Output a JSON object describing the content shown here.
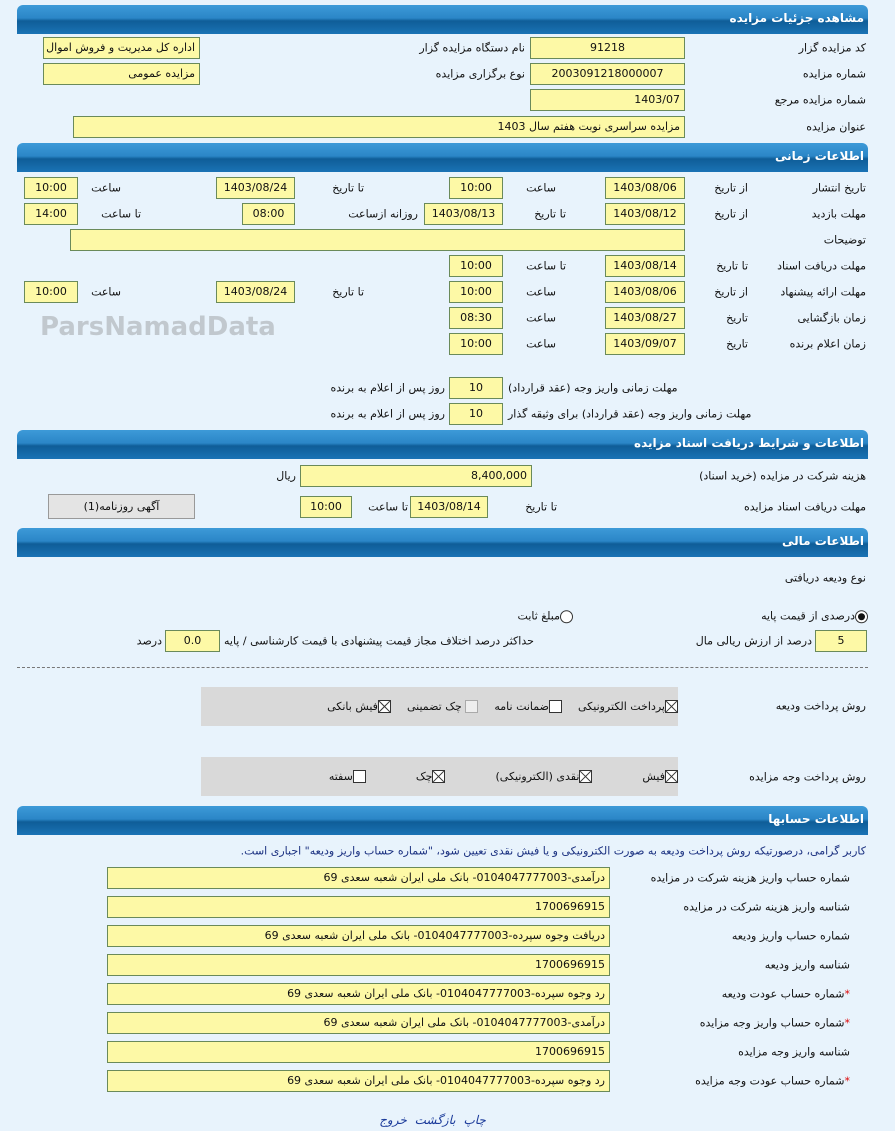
{
  "header": {
    "title": "مشاهده جزئیات مزایده"
  },
  "details": {
    "auctioneer_code_label": "کد مزایده گزار",
    "auctioneer_code": "91218",
    "auctioneer_org_label": "نام دستگاه مزایده گزار",
    "auctioneer_org": "اداره کل مدیریت و فروش اموال",
    "auction_number_label": "شماره مزایده",
    "auction_number": "2003091218000007",
    "auction_type_label": "نوع برگزاری مزایده",
    "auction_type": "مزایده عمومی",
    "ref_number_label": "شماره مزایده مرجع",
    "ref_number": "1403/07",
    "title_label": "عنوان مزایده",
    "title": "مزایده سراسری نوبت هفتم سال 1403"
  },
  "time": {
    "title": "اطلاعات زمانی",
    "publish": {
      "label": "تاریخ انتشار",
      "from_label": "از تاریخ",
      "from": "1403/08/06",
      "time_label": "ساعت",
      "time": "10:00",
      "to_label": "تا تاریخ",
      "to": "1403/08/24",
      "time2_label": "ساعت",
      "time2": "10:00"
    },
    "visit": {
      "label": "مهلت بازدید",
      "from_label": "از تاریخ",
      "from": "1403/08/12",
      "to_label": "تا تاریخ",
      "to": "1403/08/13",
      "daily_label": "روزانه ازساعت",
      "daily": "08:00",
      "until_label": "تا ساعت",
      "until": "14:00"
    },
    "desc_label": "توضیحات",
    "desc": "",
    "docs": {
      "label": "مهلت دریافت اسناد",
      "to_label": "تا تاریخ",
      "to": "1403/08/14",
      "time_label": "تا ساعت",
      "time": "10:00"
    },
    "offer": {
      "label": "مهلت ارائه پیشنهاد",
      "from_label": "از تاریخ",
      "from": "1403/08/06",
      "time_label": "ساعت",
      "time": "10:00",
      "to_label": "تا تاریخ",
      "to": "1403/08/24",
      "time2_label": "ساعت",
      "time2": "10:00"
    },
    "opening": {
      "label": "زمان بازگشایی",
      "date_label": "تاریخ",
      "date": "1403/08/27",
      "time_label": "ساعت",
      "time": "08:30"
    },
    "winner": {
      "label": "زمان اعلام برنده",
      "date_label": "تاریخ",
      "date": "1403/09/07",
      "time_label": "ساعت",
      "time": "10:00"
    },
    "pay1": {
      "label": "مهلت زمانی واریز وجه (عقد قرارداد)",
      "value": "10",
      "suffix": "روز پس از اعلام به برنده"
    },
    "pay2": {
      "label": "مهلت زمانی واریز وجه (عقد قرارداد) برای وثیقه گذار",
      "value": "10",
      "suffix": "روز پس از اعلام به برنده"
    }
  },
  "docs": {
    "title": "اطلاعات و شرایط دریافت اسناد مزایده",
    "fee_label": "هزینه شرکت در مزایده (خرید اسناد)",
    "fee": "8,400,000",
    "currency": "ریال",
    "deadline_label": "مهلت دریافت اسناد مزایده",
    "to_label": "تا تاریخ",
    "to": "1403/08/14",
    "time_label": "تا ساعت",
    "time": "10:00",
    "newspaper_button": "آگهی روزنامه(1)"
  },
  "finance": {
    "title": "اطلاعات مالی",
    "deposit_type_label": "نوع ودیعه دریافتی",
    "radio_percent": "درصدی از قیمت پایه",
    "radio_fixed": "مبلغ ثابت",
    "selected": "percent",
    "percent_value": "5",
    "percent_suffix": "درصد از ارزش ریالی مال",
    "max_diff_label": "حداکثر درصد اختلاف مجاز قیمت پیشنهادی با قیمت کارشناسی / پایه",
    "max_diff": "0.0",
    "max_diff_suffix": "درصد",
    "deposit_method_label": "روش پرداخت ودیعه",
    "deposit_methods": [
      {
        "label": "پرداخت الکترونیکی",
        "checked": true
      },
      {
        "label": "ضمانت نامه",
        "checked": false
      },
      {
        "label": "چک تضمینی",
        "checked": false,
        "disabled": true
      },
      {
        "label": "فیش بانکی",
        "checked": true
      }
    ],
    "payment_method_label": "روش پرداخت وجه مزایده",
    "payment_methods": [
      {
        "label": "فیش",
        "checked": true
      },
      {
        "label": "نقدی (الکترونیکی)",
        "checked": true
      },
      {
        "label": "چک",
        "checked": true
      },
      {
        "label": "سفته",
        "checked": false
      }
    ]
  },
  "accounts": {
    "title": "اطلاعات حسابها",
    "notice": "کاربر گرامی، درصورتیکه روش پرداخت ودیعه به صورت الکترونیکی و یا فیش نقدی تعیین شود، \"شماره حساب واریز ودیعه\" اجباری است.",
    "rows": [
      {
        "label": "شماره حساب واریز هزینه شرکت در مزایده",
        "value": "درآمدی-0104047777003- بانک ملی ایران شعبه سعدی 69",
        "required": false
      },
      {
        "label": "شناسه واریز هزینه شرکت در مزایده",
        "value": "1700696915",
        "required": false
      },
      {
        "label": "شماره حساب واریز ودیعه",
        "value": "دریافت وجوه سپرده-0104047777003- بانک ملی ایران شعبه سعدی 69",
        "required": false
      },
      {
        "label": "شناسه واریز ودیعه",
        "value": "1700696915",
        "required": false
      },
      {
        "label": "شماره حساب عودت ودیعه",
        "value": "رد وجوه سپرده-0104047777003- بانک ملی ایران شعبه سعدی 69",
        "required": true
      },
      {
        "label": "شماره حساب واریز وجه مزایده",
        "value": "درآمدی-0104047777003- بانک ملی ایران شعبه سعدی 69",
        "required": true
      },
      {
        "label": "شناسه واریز وجه مزایده",
        "value": "1700696915",
        "required": false
      },
      {
        "label": "شماره حساب عودت وجه مزایده",
        "value": "رد وجوه سپرده-0104047777003- بانک ملی ایران شعبه سعدی 69",
        "required": true
      }
    ]
  },
  "footer": {
    "print": "چاپ",
    "back": "بازگشت",
    "exit": "خروج"
  },
  "watermark": "ParsNamadData",
  "colors": {
    "header": "#1a73b5",
    "field": "#fdf9a6",
    "background": "#e8f3fc"
  }
}
